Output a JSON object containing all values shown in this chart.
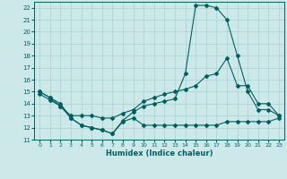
{
  "xlabel": "Humidex (Indice chaleur)",
  "xlim": [
    -0.5,
    23.5
  ],
  "ylim": [
    11,
    22.5
  ],
  "yticks": [
    11,
    12,
    13,
    14,
    15,
    16,
    17,
    18,
    19,
    20,
    21,
    22
  ],
  "xticks": [
    0,
    1,
    2,
    3,
    4,
    5,
    6,
    7,
    8,
    9,
    10,
    11,
    12,
    13,
    14,
    15,
    16,
    17,
    18,
    19,
    20,
    21,
    22,
    23
  ],
  "bg_color": "#cde8e8",
  "grid_color": "#afd4d4",
  "line_color": "#006060",
  "line1_x": [
    0,
    1,
    2,
    3,
    4,
    5,
    6,
    7,
    8,
    9,
    10,
    11,
    12,
    13,
    14,
    15,
    16,
    17,
    18,
    19,
    20,
    21,
    22,
    23
  ],
  "line1_y": [
    15.0,
    14.5,
    14.0,
    12.8,
    12.2,
    12.0,
    11.8,
    11.5,
    12.6,
    13.3,
    13.8,
    14.0,
    14.2,
    14.4,
    16.5,
    22.2,
    22.2,
    22.0,
    21.0,
    18.0,
    15.0,
    13.5,
    13.5,
    13.0
  ],
  "line2_x": [
    0,
    1,
    2,
    3,
    4,
    5,
    6,
    7,
    8,
    9,
    10,
    11,
    12,
    13,
    14,
    15,
    16,
    17,
    18,
    19,
    20,
    21,
    22,
    23
  ],
  "line2_y": [
    14.8,
    14.3,
    13.8,
    13.0,
    13.0,
    13.0,
    12.8,
    12.8,
    13.2,
    13.5,
    14.2,
    14.5,
    14.8,
    15.0,
    15.2,
    15.5,
    16.3,
    16.5,
    17.8,
    15.5,
    15.5,
    14.0,
    14.0,
    13.0
  ],
  "line3_x": [
    0,
    1,
    2,
    3,
    4,
    5,
    6,
    7,
    8,
    9,
    10,
    11,
    12,
    13,
    14,
    15,
    16,
    17,
    18,
    19,
    20,
    21,
    22,
    23
  ],
  "line3_y": [
    15.0,
    14.5,
    13.8,
    12.8,
    12.2,
    12.0,
    11.8,
    11.5,
    12.5,
    12.8,
    12.2,
    12.2,
    12.2,
    12.2,
    12.2,
    12.2,
    12.2,
    12.2,
    12.5,
    12.5,
    12.5,
    12.5,
    12.5,
    12.8
  ]
}
